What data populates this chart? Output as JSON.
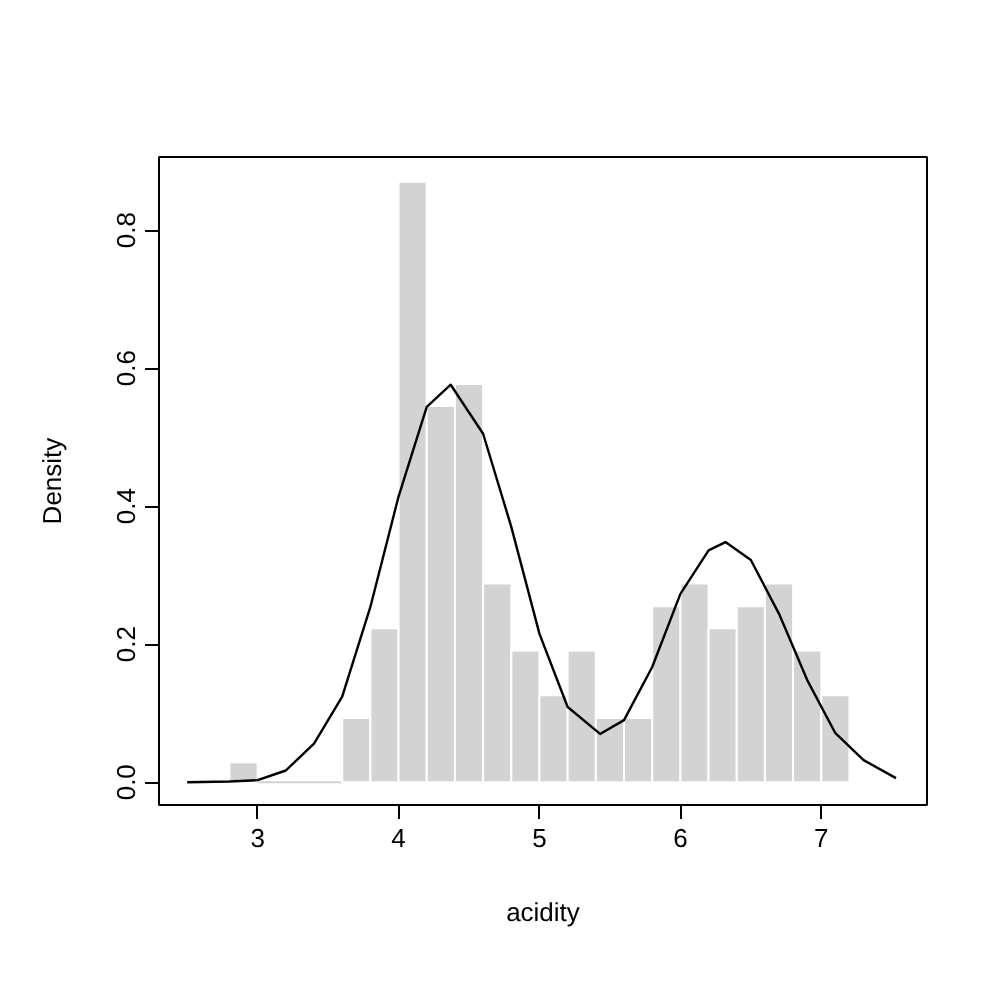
{
  "chart_data": {
    "type": "histogram",
    "xlabel": "acidity",
    "ylabel": "Density",
    "bins": [
      2.8,
      3.0,
      3.2,
      3.4,
      3.6,
      3.8,
      4.0,
      4.2,
      4.4,
      4.6,
      4.8,
      5.0,
      5.2,
      5.4,
      5.6,
      5.8,
      6.0,
      6.2,
      6.4,
      6.6,
      6.8,
      7.0,
      7.2
    ],
    "values": [
      0.029,
      0,
      0,
      0,
      0.093,
      0.223,
      0.87,
      0.545,
      0.577,
      0.288,
      0.191,
      0.126,
      0.191,
      0.093,
      0.093,
      0.255,
      0.288,
      0.223,
      0.255,
      0.288,
      0.191,
      0.126
    ],
    "color": "#d3d3d3",
    "series": [
      {
        "type": "line",
        "color": "#000000",
        "x": [
          2.5,
          2.8,
          3.0,
          3.2,
          3.4,
          3.6,
          3.8,
          4.0,
          4.2,
          4.37,
          4.6,
          4.8,
          5.0,
          5.2,
          5.43,
          5.6,
          5.8,
          6.0,
          6.2,
          6.32,
          6.5,
          6.7,
          6.9,
          7.1,
          7.3,
          7.53
        ],
        "values": [
          0,
          0.001,
          0.003,
          0.017,
          0.056,
          0.124,
          0.254,
          0.414,
          0.544,
          0.576,
          0.505,
          0.37,
          0.215,
          0.109,
          0.07,
          0.09,
          0.167,
          0.273,
          0.336,
          0.348,
          0.322,
          0.244,
          0.148,
          0.071,
          0.032,
          0.006
        ]
      }
    ],
    "xlim": [
      2.3,
      7.75
    ],
    "ylim": [
      -0.033,
      0.906
    ],
    "xticks": [
      3,
      4,
      5,
      6,
      7
    ],
    "yticks": [
      {
        "value": 0,
        "label": "0.0"
      },
      {
        "value": 0.2,
        "label": "0.2"
      },
      {
        "value": 0.4,
        "label": "0.4"
      },
      {
        "value": 0.6,
        "label": "0.6"
      },
      {
        "value": 0.8,
        "label": "0.8"
      }
    ],
    "grid": false
  }
}
